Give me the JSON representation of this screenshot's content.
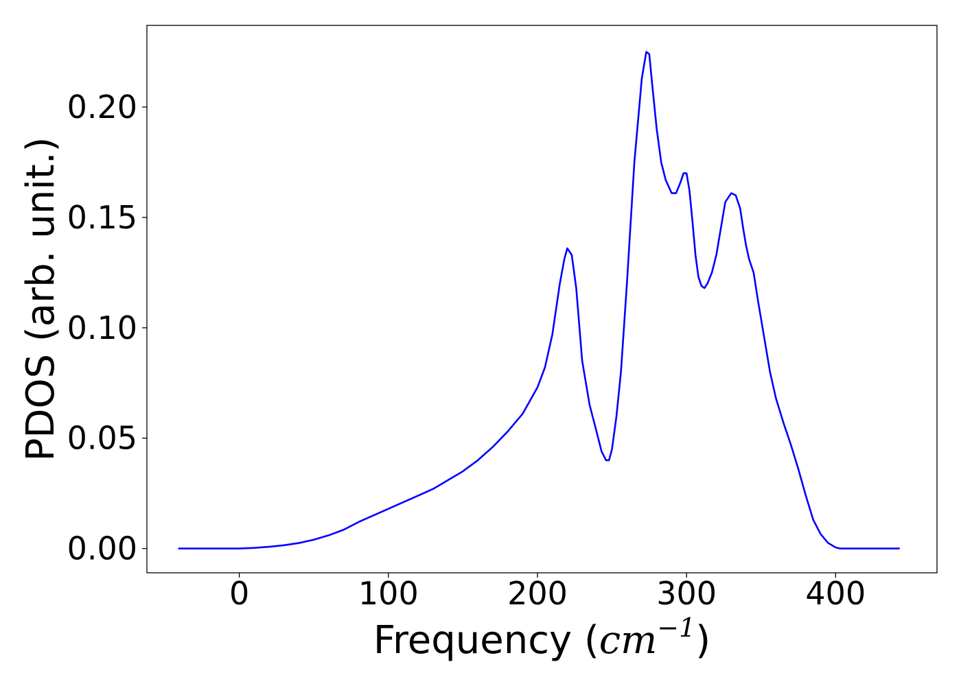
{
  "chart_data": {
    "type": "line",
    "title": "",
    "xlabel": "Frequency (cm⁻¹)",
    "xlabel_parts": {
      "prefix": "Frequency (",
      "var": "cm",
      "sup": "−1",
      "suffix": ")"
    },
    "ylabel": "PDOS (arb. unit.)",
    "xlim": [
      -62,
      468
    ],
    "ylim": [
      -0.011,
      0.237
    ],
    "xticks": [
      0,
      100,
      200,
      300,
      400
    ],
    "xtick_labels": [
      "0",
      "100",
      "200",
      "300",
      "400"
    ],
    "yticks": [
      0.0,
      0.05,
      0.1,
      0.15,
      0.2
    ],
    "ytick_labels": [
      "0.00",
      "0.05",
      "0.10",
      "0.15",
      "0.20"
    ],
    "grid": false,
    "legend": "none",
    "series": [
      {
        "color": "#0000ff",
        "x": [
          -41,
          0,
          10,
          20,
          30,
          40,
          50,
          60,
          70,
          80,
          90,
          100,
          110,
          120,
          130,
          140,
          150,
          160,
          170,
          180,
          190,
          200,
          205,
          210,
          215,
          218,
          220,
          223,
          226,
          230,
          235,
          240,
          243,
          246,
          248,
          250,
          253,
          256,
          260,
          265,
          270,
          273,
          275,
          277,
          280,
          283,
          286,
          290,
          293,
          296,
          298,
          300,
          302,
          304,
          306,
          308,
          310,
          312,
          314,
          317,
          320,
          323,
          326,
          330,
          333,
          336,
          338,
          340,
          342,
          345,
          348,
          352,
          356,
          360,
          365,
          370,
          375,
          380,
          385,
          390,
          395,
          400,
          403,
          406,
          409,
          412,
          415,
          420,
          443
        ],
        "y": [
          0.0,
          0.0,
          0.0003,
          0.0008,
          0.0015,
          0.0025,
          0.004,
          0.006,
          0.0085,
          0.012,
          0.015,
          0.018,
          0.021,
          0.024,
          0.027,
          0.031,
          0.035,
          0.04,
          0.046,
          0.053,
          0.061,
          0.073,
          0.082,
          0.097,
          0.12,
          0.131,
          0.136,
          0.133,
          0.118,
          0.085,
          0.065,
          0.052,
          0.044,
          0.04,
          0.04,
          0.045,
          0.06,
          0.08,
          0.12,
          0.175,
          0.213,
          0.225,
          0.224,
          0.21,
          0.19,
          0.175,
          0.167,
          0.161,
          0.161,
          0.166,
          0.17,
          0.17,
          0.162,
          0.148,
          0.133,
          0.123,
          0.119,
          0.118,
          0.12,
          0.125,
          0.133,
          0.145,
          0.157,
          0.161,
          0.16,
          0.154,
          0.145,
          0.137,
          0.131,
          0.125,
          0.112,
          0.096,
          0.08,
          0.068,
          0.057,
          0.047,
          0.036,
          0.024,
          0.013,
          0.0065,
          0.0025,
          0.0005,
          0.0,
          0.0,
          0.0,
          0.0,
          0.0,
          0.0,
          0.0
        ]
      }
    ]
  }
}
